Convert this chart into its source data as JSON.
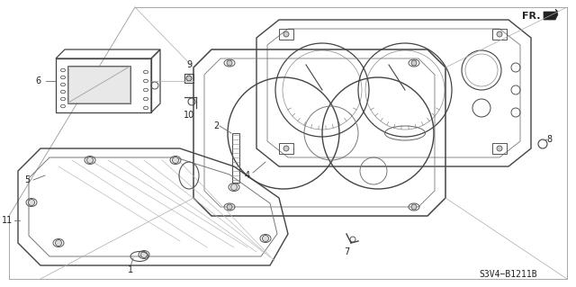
{
  "bg_color": "#ffffff",
  "line_color": "#444444",
  "text_color": "#222222",
  "diagram_id": "S3V4−B1211B",
  "fr_label": "FR.",
  "figsize": [
    6.4,
    3.19
  ],
  "dpi": 100
}
